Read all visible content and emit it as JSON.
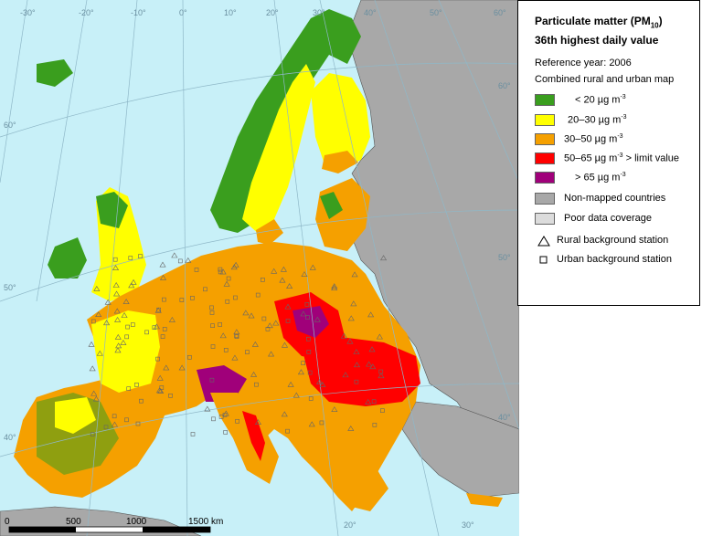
{
  "legend": {
    "title_line1": "Particulate matter (PM",
    "title_sub": "10",
    "title_close": ")",
    "title_line2": "36th highest daily value",
    "reference_year": "Reference year: 2006",
    "map_type": "Combined rural and urban map",
    "unit_sup": "-3",
    "classes": [
      {
        "label": "< 20 µg m",
        "color": "#3a9e1e"
      },
      {
        "label": "20–30 µg m",
        "color": "#ffff00"
      },
      {
        "label": "30–50 µg m",
        "color": "#f5a000"
      },
      {
        "label": "50–65 µg m",
        "suffix": " > limit value",
        "color": "#ff0000"
      },
      {
        "label": "> 65 µg m",
        "color": "#a0007a"
      }
    ],
    "non_mapped": {
      "label": "Non-mapped countries",
      "color": "#a8a8a8"
    },
    "poor_coverage": {
      "label": "Poor data coverage",
      "color": "#dcdcdc"
    },
    "rural_station": "Rural background station",
    "urban_station": "Urban background station"
  },
  "grid": {
    "longitudes_top": [
      "-30°",
      "-20°",
      "-10°",
      "0°",
      "10°",
      "20°",
      "30°",
      "40°",
      "50°",
      "60°"
    ],
    "longitudes_bottom": [
      "20°",
      "30°"
    ],
    "latitudes_left": [
      "60°",
      "50°",
      "40°"
    ],
    "latitudes_right": [
      "60°",
      "50°",
      "40°"
    ]
  },
  "scale_bar": {
    "labels": [
      "0",
      "500",
      "1000",
      "1500 km"
    ]
  },
  "colors": {
    "sea": "#c8f0f8",
    "non_mapped": "#a8a8a8",
    "graticule": "#8fb8c8"
  }
}
